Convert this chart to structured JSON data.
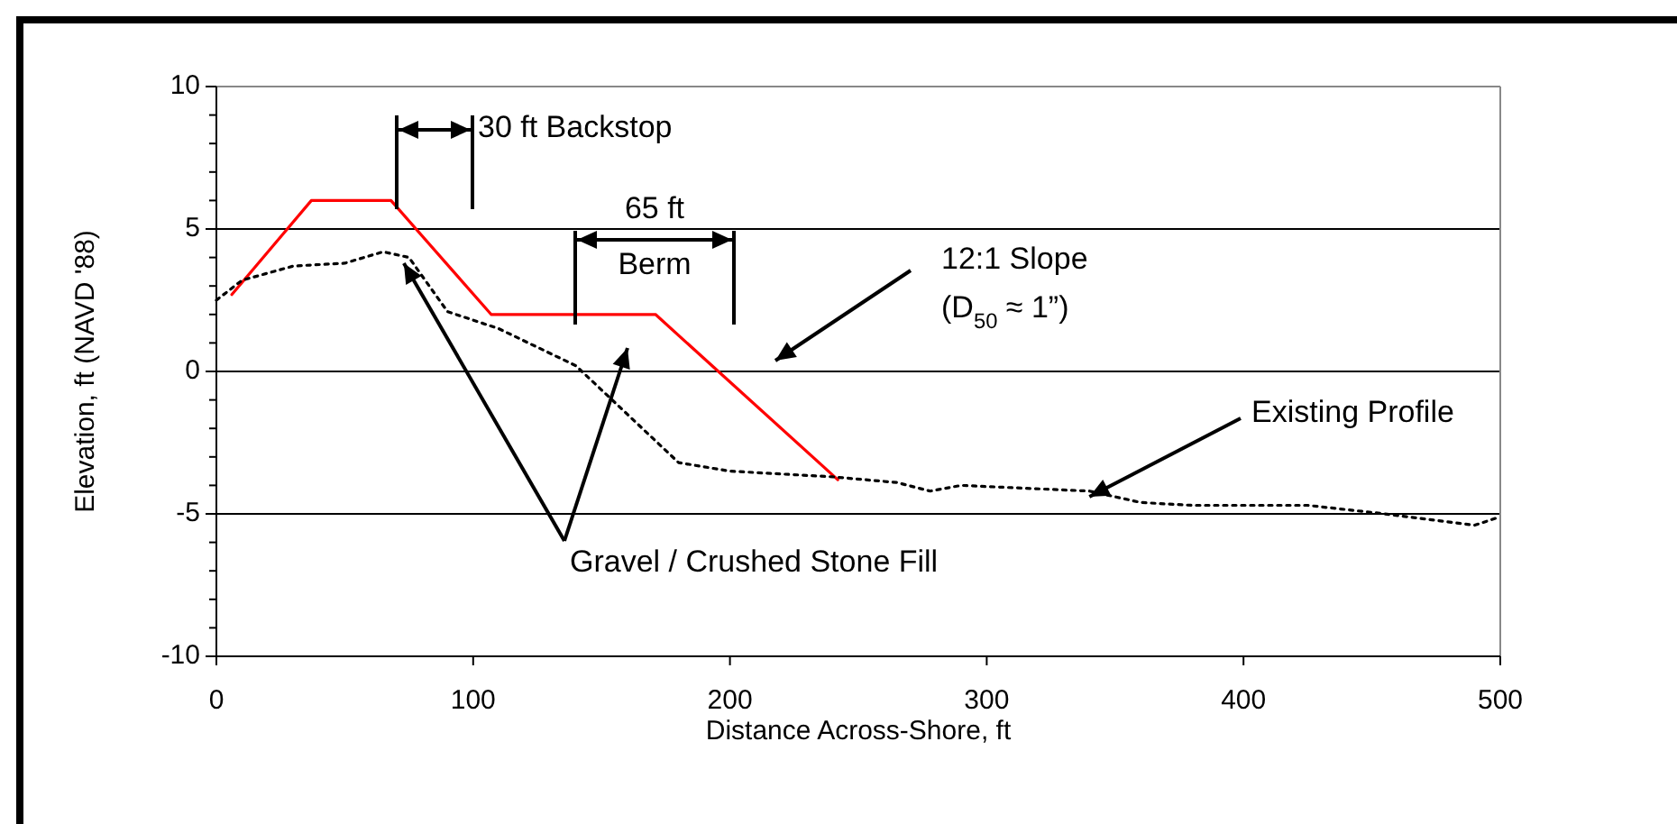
{
  "chart_data": {
    "type": "line",
    "xlabel": "Distance Across-Shore, ft",
    "ylabel": "Elevation, ft (NAVD '88)",
    "xlim": [
      0,
      500
    ],
    "ylim": [
      -10,
      10
    ],
    "xticks": [
      0,
      100,
      200,
      300,
      400,
      500
    ],
    "yticks": [
      -10,
      {
        "value": -9,
        "label": null
      },
      {
        "value": -8,
        "label": null
      },
      {
        "value": -7,
        "label": null
      },
      {
        "value": -6,
        "label": null
      },
      -5,
      {
        "value": -4,
        "label": null
      },
      {
        "value": -3,
        "label": null
      },
      {
        "value": -2,
        "label": null
      },
      {
        "value": -1,
        "label": null
      },
      0,
      {
        "value": 1,
        "label": null
      },
      {
        "value": 2,
        "label": null
      },
      {
        "value": 3,
        "label": null
      },
      {
        "value": 4,
        "label": null
      },
      5,
      {
        "value": 6,
        "label": null
      },
      {
        "value": 7,
        "label": null
      },
      {
        "value": 8,
        "label": null
      },
      {
        "value": 9,
        "label": null
      },
      10
    ],
    "grid": "y",
    "series": [
      {
        "color": "#ff0000",
        "line_style": "solid",
        "x": [
          6,
          37,
          68,
          107,
          171,
          242
        ],
        "values": [
          2.7,
          6,
          6,
          2,
          2,
          -3.8
        ]
      },
      {
        "color": "#000000",
        "line_style": "dotted",
        "x": [
          0,
          10,
          30,
          50,
          65,
          75,
          90,
          110,
          140,
          160,
          180,
          200,
          240,
          265,
          278,
          290,
          340,
          360,
          380,
          425,
          455,
          490,
          500
        ],
        "values": [
          2.5,
          3.2,
          3.7,
          3.8,
          4.2,
          4.0,
          2.1,
          1.5,
          0.2,
          -1.5,
          -3.2,
          -3.5,
          -3.7,
          -3.9,
          -4.2,
          -4.0,
          -4.2,
          -4.6,
          -4.7,
          -4.7,
          -5.0,
          -5.4,
          -5.1
        ]
      }
    ],
    "annotations": [
      "30 ft Backstop",
      "65 ft\nBerm",
      "12:1 Slope\n(D$_{50}$ ≈ 1”)",
      {
        "text": "Existing Profile",
        "x": 340,
        "y": -4.4
      },
      {
        "text": "Gravel / Crushed Stone Fill",
        "x": 73,
        "y": 3.8
      }
    ]
  }
}
